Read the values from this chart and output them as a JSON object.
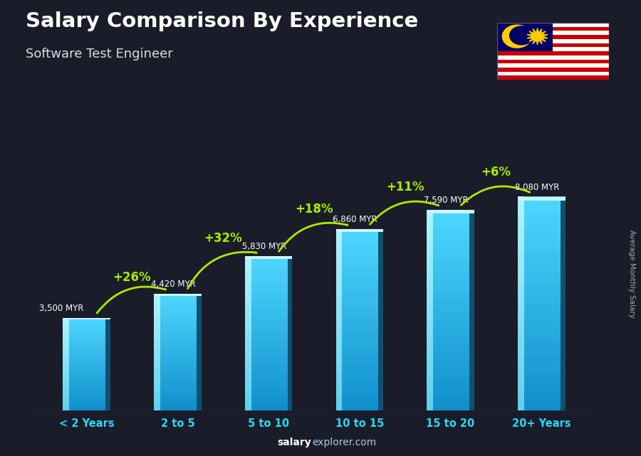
{
  "title": "Salary Comparison By Experience",
  "subtitle": "Software Test Engineer",
  "categories": [
    "< 2 Years",
    "2 to 5",
    "5 to 10",
    "10 to 15",
    "15 to 20",
    "20+ Years"
  ],
  "values": [
    3500,
    4420,
    5830,
    6860,
    7590,
    8080
  ],
  "value_labels": [
    "3,500 MYR",
    "4,420 MYR",
    "5,830 MYR",
    "6,860 MYR",
    "7,590 MYR",
    "8,080 MYR"
  ],
  "pct_labels": [
    "+26%",
    "+32%",
    "+18%",
    "+11%",
    "+6%"
  ],
  "bar_face_color": "#29bfe8",
  "bar_left_color": "#7ee8ff",
  "bar_right_color": "#1580a0",
  "bar_top_color": "#a0f0ff",
  "bg_color": "#1a1c2a",
  "title_color": "#ffffff",
  "subtitle_color": "#dddddd",
  "xticklabel_color": "#29d8f8",
  "value_label_color": "#ffffff",
  "pct_color": "#aaee00",
  "arrow_color": "#aaee00",
  "ylabel_text": "Average Monthly Salary",
  "ylabel_color": "#aaaaaa",
  "footer_salary_color": "#ffffff",
  "footer_explorer_color": "#aaccdd",
  "ylim": [
    0,
    10000
  ],
  "bar_width": 0.52,
  "flag_stripes": [
    "#cc0001",
    "#ffffff"
  ],
  "flag_blue": "#010066",
  "flag_yellow": "#ffcc00"
}
